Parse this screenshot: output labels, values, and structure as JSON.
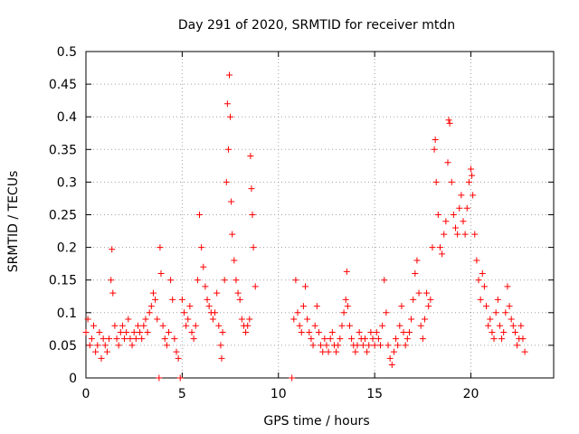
{
  "colors": {
    "series": "#ff0000",
    "grid": "#a0a0a0",
    "axis": "#000000"
  },
  "chart_data": {
    "type": "scatter",
    "title": "Day 291 of 2020, SRMTID for receiver mtdn",
    "xlabel": "GPS time / hours",
    "ylabel": "SRMTID / TECUs",
    "xlim": [
      0,
      24.3
    ],
    "ylim": [
      0,
      0.5
    ],
    "xticks": [
      0,
      5,
      10,
      15,
      20
    ],
    "xtick_labels": [
      "0",
      "5",
      "10",
      "15",
      "20"
    ],
    "yticks": [
      0,
      0.05,
      0.1,
      0.15,
      0.2,
      0.25,
      0.3,
      0.35,
      0.4,
      0.45,
      0.5
    ],
    "ytick_labels": [
      "0",
      "0.05",
      "0.1",
      "0.15",
      "0.2",
      "0.25",
      "0.3",
      "0.35",
      "0.4",
      "0.45",
      "0.5"
    ],
    "grid": true,
    "legend": "none",
    "marker": "+",
    "series": [
      {
        "name": "SRMTID",
        "points": [
          [
            0.0,
            0.07
          ],
          [
            0.1,
            0.09
          ],
          [
            0.2,
            0.05
          ],
          [
            0.3,
            0.06
          ],
          [
            0.4,
            0.08
          ],
          [
            0.5,
            0.04
          ],
          [
            0.6,
            0.05
          ],
          [
            0.7,
            0.07
          ],
          [
            0.8,
            0.03
          ],
          [
            0.9,
            0.06
          ],
          [
            1.0,
            0.05
          ],
          [
            1.1,
            0.04
          ],
          [
            1.2,
            0.06
          ],
          [
            1.3,
            0.15
          ],
          [
            1.35,
            0.197
          ],
          [
            1.4,
            0.13
          ],
          [
            1.5,
            0.08
          ],
          [
            1.6,
            0.06
          ],
          [
            1.7,
            0.05
          ],
          [
            1.8,
            0.07
          ],
          [
            1.9,
            0.08
          ],
          [
            2.0,
            0.06
          ],
          [
            2.1,
            0.07
          ],
          [
            2.2,
            0.09
          ],
          [
            2.3,
            0.06
          ],
          [
            2.4,
            0.05
          ],
          [
            2.5,
            0.07
          ],
          [
            2.6,
            0.06
          ],
          [
            2.7,
            0.08
          ],
          [
            2.8,
            0.07
          ],
          [
            2.9,
            0.06
          ],
          [
            3.0,
            0.08
          ],
          [
            3.1,
            0.09
          ],
          [
            3.2,
            0.07
          ],
          [
            3.3,
            0.1
          ],
          [
            3.4,
            0.11
          ],
          [
            3.5,
            0.13
          ],
          [
            3.6,
            0.12
          ],
          [
            3.7,
            0.09
          ],
          [
            3.8,
            0.0
          ],
          [
            3.85,
            0.2
          ],
          [
            3.9,
            0.16
          ],
          [
            4.0,
            0.08
          ],
          [
            4.1,
            0.06
          ],
          [
            4.2,
            0.05
          ],
          [
            4.3,
            0.07
          ],
          [
            4.4,
            0.15
          ],
          [
            4.5,
            0.12
          ],
          [
            4.6,
            0.06
          ],
          [
            4.7,
            0.04
          ],
          [
            4.8,
            0.03
          ],
          [
            4.9,
            0.0
          ],
          [
            5.0,
            0.12
          ],
          [
            5.1,
            0.1
          ],
          [
            5.2,
            0.08
          ],
          [
            5.3,
            0.09
          ],
          [
            5.4,
            0.11
          ],
          [
            5.5,
            0.07
          ],
          [
            5.6,
            0.06
          ],
          [
            5.7,
            0.08
          ],
          [
            5.8,
            0.15
          ],
          [
            5.9,
            0.25
          ],
          [
            6.0,
            0.2
          ],
          [
            6.1,
            0.17
          ],
          [
            6.2,
            0.14
          ],
          [
            6.3,
            0.12
          ],
          [
            6.4,
            0.11
          ],
          [
            6.5,
            0.1
          ],
          [
            6.6,
            0.09
          ],
          [
            6.7,
            0.1
          ],
          [
            6.8,
            0.13
          ],
          [
            6.9,
            0.08
          ],
          [
            7.0,
            0.05
          ],
          [
            7.05,
            0.03
          ],
          [
            7.1,
            0.07
          ],
          [
            7.2,
            0.15
          ],
          [
            7.3,
            0.3
          ],
          [
            7.35,
            0.42
          ],
          [
            7.4,
            0.35
          ],
          [
            7.45,
            0.464
          ],
          [
            7.5,
            0.4
          ],
          [
            7.55,
            0.27
          ],
          [
            7.6,
            0.22
          ],
          [
            7.7,
            0.18
          ],
          [
            7.8,
            0.15
          ],
          [
            7.9,
            0.13
          ],
          [
            8.0,
            0.12
          ],
          [
            8.1,
            0.09
          ],
          [
            8.2,
            0.08
          ],
          [
            8.3,
            0.07
          ],
          [
            8.4,
            0.08
          ],
          [
            8.5,
            0.09
          ],
          [
            8.55,
            0.34
          ],
          [
            8.6,
            0.29
          ],
          [
            8.65,
            0.25
          ],
          [
            8.7,
            0.2
          ],
          [
            8.8,
            0.14
          ],
          [
            10.7,
            0.0
          ],
          [
            10.8,
            0.09
          ],
          [
            10.9,
            0.15
          ],
          [
            11.0,
            0.1
          ],
          [
            11.1,
            0.08
          ],
          [
            11.2,
            0.07
          ],
          [
            11.3,
            0.11
          ],
          [
            11.4,
            0.14
          ],
          [
            11.5,
            0.09
          ],
          [
            11.6,
            0.07
          ],
          [
            11.7,
            0.06
          ],
          [
            11.8,
            0.05
          ],
          [
            11.9,
            0.08
          ],
          [
            12.0,
            0.11
          ],
          [
            12.1,
            0.07
          ],
          [
            12.2,
            0.05
          ],
          [
            12.3,
            0.04
          ],
          [
            12.4,
            0.06
          ],
          [
            12.5,
            0.05
          ],
          [
            12.6,
            0.04
          ],
          [
            12.7,
            0.06
          ],
          [
            12.8,
            0.07
          ],
          [
            12.9,
            0.05
          ],
          [
            13.0,
            0.04
          ],
          [
            13.1,
            0.05
          ],
          [
            13.2,
            0.06
          ],
          [
            13.3,
            0.08
          ],
          [
            13.4,
            0.1
          ],
          [
            13.5,
            0.12
          ],
          [
            13.55,
            0.163
          ],
          [
            13.6,
            0.11
          ],
          [
            13.7,
            0.08
          ],
          [
            13.8,
            0.06
          ],
          [
            13.9,
            0.05
          ],
          [
            14.0,
            0.04
          ],
          [
            14.1,
            0.05
          ],
          [
            14.2,
            0.07
          ],
          [
            14.3,
            0.06
          ],
          [
            14.4,
            0.05
          ],
          [
            14.5,
            0.06
          ],
          [
            14.6,
            0.04
          ],
          [
            14.7,
            0.05
          ],
          [
            14.8,
            0.07
          ],
          [
            14.9,
            0.06
          ],
          [
            15.0,
            0.05
          ],
          [
            15.1,
            0.07
          ],
          [
            15.2,
            0.06
          ],
          [
            15.3,
            0.05
          ],
          [
            15.4,
            0.08
          ],
          [
            15.5,
            0.15
          ],
          [
            15.6,
            0.1
          ],
          [
            15.7,
            0.05
          ],
          [
            15.8,
            0.03
          ],
          [
            15.9,
            0.02
          ],
          [
            16.0,
            0.04
          ],
          [
            16.1,
            0.06
          ],
          [
            16.2,
            0.05
          ],
          [
            16.3,
            0.08
          ],
          [
            16.4,
            0.11
          ],
          [
            16.5,
            0.07
          ],
          [
            16.6,
            0.05
          ],
          [
            16.7,
            0.06
          ],
          [
            16.8,
            0.07
          ],
          [
            16.9,
            0.09
          ],
          [
            17.0,
            0.12
          ],
          [
            17.1,
            0.16
          ],
          [
            17.2,
            0.18
          ],
          [
            17.3,
            0.13
          ],
          [
            17.4,
            0.08
          ],
          [
            17.5,
            0.06
          ],
          [
            17.6,
            0.09
          ],
          [
            17.7,
            0.13
          ],
          [
            17.8,
            0.11
          ],
          [
            17.9,
            0.12
          ],
          [
            18.0,
            0.2
          ],
          [
            18.1,
            0.35
          ],
          [
            18.15,
            0.365
          ],
          [
            18.2,
            0.3
          ],
          [
            18.3,
            0.25
          ],
          [
            18.4,
            0.2
          ],
          [
            18.5,
            0.19
          ],
          [
            18.6,
            0.22
          ],
          [
            18.7,
            0.24
          ],
          [
            18.8,
            0.33
          ],
          [
            18.85,
            0.395
          ],
          [
            18.9,
            0.39
          ],
          [
            19.0,
            0.3
          ],
          [
            19.1,
            0.25
          ],
          [
            19.2,
            0.23
          ],
          [
            19.3,
            0.22
          ],
          [
            19.4,
            0.26
          ],
          [
            19.5,
            0.28
          ],
          [
            19.6,
            0.24
          ],
          [
            19.7,
            0.22
          ],
          [
            19.8,
            0.26
          ],
          [
            19.9,
            0.3
          ],
          [
            20.0,
            0.32
          ],
          [
            20.05,
            0.31
          ],
          [
            20.1,
            0.28
          ],
          [
            20.2,
            0.22
          ],
          [
            20.3,
            0.18
          ],
          [
            20.4,
            0.15
          ],
          [
            20.5,
            0.12
          ],
          [
            20.6,
            0.16
          ],
          [
            20.7,
            0.14
          ],
          [
            20.8,
            0.11
          ],
          [
            20.9,
            0.08
          ],
          [
            21.0,
            0.09
          ],
          [
            21.1,
            0.07
          ],
          [
            21.2,
            0.06
          ],
          [
            21.3,
            0.1
          ],
          [
            21.4,
            0.12
          ],
          [
            21.5,
            0.08
          ],
          [
            21.6,
            0.06
          ],
          [
            21.7,
            0.07
          ],
          [
            21.8,
            0.1
          ],
          [
            21.9,
            0.14
          ],
          [
            22.0,
            0.11
          ],
          [
            22.1,
            0.09
          ],
          [
            22.2,
            0.08
          ],
          [
            22.3,
            0.07
          ],
          [
            22.4,
            0.05
          ],
          [
            22.5,
            0.06
          ],
          [
            22.6,
            0.08
          ],
          [
            22.7,
            0.06
          ],
          [
            22.8,
            0.04
          ]
        ]
      }
    ]
  }
}
